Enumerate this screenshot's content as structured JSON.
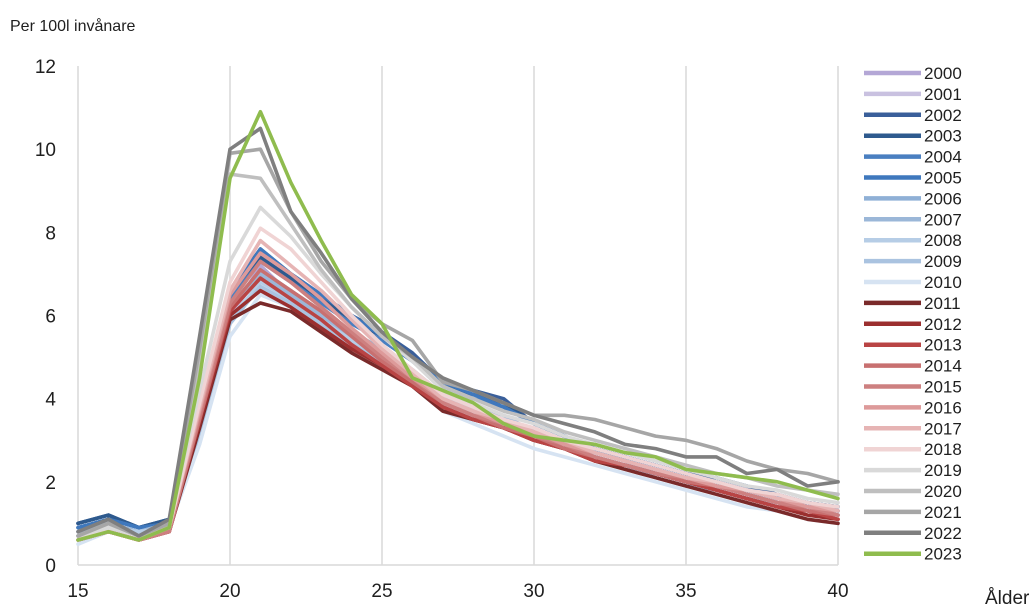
{
  "chart_data": {
    "type": "line",
    "title": "",
    "ylabel": "Per 100l invånare",
    "xlabel": "Ålder",
    "xlim": [
      15,
      40
    ],
    "ylim": [
      0,
      12
    ],
    "xticks": [
      15,
      20,
      25,
      30,
      35,
      40
    ],
    "yticks": [
      0,
      2,
      4,
      6,
      8,
      10,
      12
    ],
    "grid": "vertical",
    "legend": "right",
    "x": [
      15,
      16,
      17,
      18,
      19,
      20,
      21,
      22,
      23,
      24,
      25,
      26,
      27,
      28,
      29,
      30,
      31,
      32,
      33,
      34,
      35,
      36,
      37,
      38,
      39,
      40
    ],
    "series": [
      {
        "name": "2000",
        "color": "#b4a7d6",
        "values": [
          0.7,
          1.0,
          0.7,
          1.0,
          3.5,
          6.0,
          7.2,
          6.5,
          6.0,
          5.4,
          5.0,
          4.5,
          3.9,
          3.6,
          3.3,
          3.1,
          2.9,
          2.6,
          2.4,
          2.2,
          2.0,
          1.8,
          1.6,
          1.5,
          1.3,
          1.2
        ]
      },
      {
        "name": "2001",
        "color": "#c9c1e0",
        "values": [
          0.8,
          1.0,
          0.8,
          1.0,
          3.4,
          6.0,
          7.0,
          6.4,
          5.9,
          5.3,
          5.0,
          4.5,
          3.9,
          3.6,
          3.3,
          3.1,
          2.9,
          2.6,
          2.4,
          2.2,
          2.0,
          1.8,
          1.6,
          1.5,
          1.3,
          1.2
        ]
      },
      {
        "name": "2002",
        "color": "#3a5f9a",
        "values": [
          1.0,
          1.2,
          0.9,
          1.1,
          3.6,
          6.6,
          7.6,
          7.0,
          6.5,
          6.0,
          5.6,
          5.1,
          4.4,
          4.2,
          4.0,
          3.4,
          3.1,
          2.8,
          2.6,
          2.4,
          2.2,
          2.1,
          1.9,
          1.7,
          1.5,
          1.4
        ]
      },
      {
        "name": "2003",
        "color": "#2e5a8e",
        "values": [
          1.0,
          1.2,
          0.9,
          1.1,
          3.5,
          6.5,
          7.4,
          6.9,
          6.4,
          5.9,
          5.5,
          5.0,
          4.3,
          4.1,
          3.9,
          3.4,
          3.1,
          2.8,
          2.6,
          2.4,
          2.2,
          2.0,
          1.8,
          1.6,
          1.5,
          1.4
        ]
      },
      {
        "name": "2004",
        "color": "#4a7fc1",
        "values": [
          0.9,
          1.1,
          0.9,
          1.0,
          3.4,
          6.4,
          7.3,
          6.8,
          6.3,
          5.8,
          5.4,
          4.9,
          4.3,
          4.0,
          3.8,
          3.4,
          3.1,
          2.8,
          2.6,
          2.4,
          2.2,
          2.0,
          1.8,
          1.6,
          1.5,
          1.3
        ]
      },
      {
        "name": "2005",
        "color": "#3f78bd",
        "values": [
          0.9,
          1.1,
          0.9,
          1.0,
          3.4,
          6.5,
          7.6,
          7.0,
          6.5,
          6.0,
          5.5,
          5.0,
          4.4,
          4.1,
          3.8,
          3.4,
          3.1,
          2.8,
          2.6,
          2.4,
          2.2,
          2.0,
          1.8,
          1.6,
          1.5,
          1.3
        ]
      },
      {
        "name": "2006",
        "color": "#8fb0d6",
        "values": [
          0.8,
          1.0,
          0.8,
          1.0,
          3.3,
          6.2,
          7.1,
          6.6,
          6.1,
          5.6,
          5.2,
          4.7,
          4.1,
          3.8,
          3.6,
          3.2,
          3.0,
          2.7,
          2.5,
          2.3,
          2.1,
          1.9,
          1.7,
          1.5,
          1.4,
          1.3
        ]
      },
      {
        "name": "2007",
        "color": "#9bb7d8",
        "values": [
          0.8,
          1.0,
          0.8,
          1.0,
          3.2,
          6.1,
          7.0,
          6.5,
          6.0,
          5.5,
          5.1,
          4.6,
          4.0,
          3.7,
          3.5,
          3.2,
          2.9,
          2.7,
          2.5,
          2.2,
          2.0,
          1.9,
          1.7,
          1.5,
          1.4,
          1.2
        ]
      },
      {
        "name": "2008",
        "color": "#b6cde6",
        "values": [
          0.7,
          0.9,
          0.8,
          0.9,
          3.1,
          5.9,
          6.8,
          6.4,
          5.9,
          5.4,
          5.0,
          4.5,
          3.9,
          3.6,
          3.4,
          3.1,
          2.9,
          2.6,
          2.4,
          2.2,
          2.0,
          1.8,
          1.6,
          1.5,
          1.3,
          1.2
        ]
      },
      {
        "name": "2009",
        "color": "#aac3e0",
        "values": [
          0.7,
          0.9,
          0.7,
          0.9,
          3.0,
          5.8,
          6.7,
          6.3,
          5.8,
          5.3,
          4.9,
          4.4,
          3.8,
          3.5,
          3.3,
          3.0,
          2.8,
          2.6,
          2.4,
          2.1,
          1.9,
          1.8,
          1.6,
          1.4,
          1.3,
          1.2
        ]
      },
      {
        "name": "2010",
        "color": "#d6e3f2",
        "values": [
          0.5,
          0.8,
          0.7,
          0.9,
          2.9,
          5.5,
          6.5,
          6.2,
          5.7,
          5.2,
          4.8,
          4.3,
          3.7,
          3.4,
          3.1,
          2.8,
          2.6,
          2.4,
          2.2,
          2.0,
          1.8,
          1.6,
          1.4,
          1.3,
          1.1,
          1.0
        ]
      },
      {
        "name": "2011",
        "color": "#7a2a2a",
        "values": [
          0.6,
          0.8,
          0.6,
          0.8,
          3.3,
          5.9,
          6.3,
          6.1,
          5.6,
          5.1,
          4.7,
          4.3,
          3.7,
          3.5,
          3.3,
          3.0,
          2.8,
          2.5,
          2.3,
          2.1,
          1.9,
          1.7,
          1.5,
          1.3,
          1.1,
          1.0
        ]
      },
      {
        "name": "2012",
        "color": "#9b2f2f",
        "values": [
          0.6,
          0.8,
          0.6,
          0.8,
          3.4,
          6.0,
          6.6,
          6.2,
          5.7,
          5.2,
          4.8,
          4.3,
          3.8,
          3.5,
          3.3,
          3.0,
          2.8,
          2.5,
          2.4,
          2.2,
          2.0,
          1.8,
          1.6,
          1.4,
          1.2,
          1.1
        ]
      },
      {
        "name": "2013",
        "color": "#b94444",
        "values": [
          0.6,
          0.8,
          0.6,
          0.8,
          3.5,
          6.1,
          6.9,
          6.4,
          5.9,
          5.3,
          4.8,
          4.3,
          3.8,
          3.5,
          3.3,
          3.0,
          2.8,
          2.5,
          2.4,
          2.2,
          2.0,
          1.8,
          1.6,
          1.4,
          1.3,
          1.1
        ]
      },
      {
        "name": "2014",
        "color": "#c87070",
        "values": [
          0.6,
          0.8,
          0.6,
          0.8,
          3.5,
          6.2,
          7.1,
          6.6,
          6.1,
          5.5,
          4.9,
          4.4,
          3.9,
          3.6,
          3.3,
          3.1,
          2.8,
          2.6,
          2.4,
          2.2,
          2.0,
          1.9,
          1.7,
          1.5,
          1.3,
          1.2
        ]
      },
      {
        "name": "2015",
        "color": "#cd8080",
        "values": [
          0.6,
          0.8,
          0.6,
          0.8,
          3.6,
          6.3,
          7.3,
          6.8,
          6.2,
          5.6,
          5.0,
          4.5,
          3.9,
          3.6,
          3.4,
          3.1,
          2.9,
          2.6,
          2.4,
          2.2,
          2.1,
          1.9,
          1.7,
          1.5,
          1.4,
          1.2
        ]
      },
      {
        "name": "2016",
        "color": "#dd9a9a",
        "values": [
          0.6,
          0.8,
          0.6,
          0.9,
          3.7,
          6.5,
          7.5,
          7.0,
          6.4,
          5.7,
          5.1,
          4.5,
          4.0,
          3.7,
          3.4,
          3.2,
          2.9,
          2.7,
          2.5,
          2.3,
          2.1,
          1.9,
          1.8,
          1.6,
          1.4,
          1.3
        ]
      },
      {
        "name": "2017",
        "color": "#e6b4b4",
        "values": [
          0.6,
          0.8,
          0.6,
          0.9,
          3.8,
          6.6,
          7.8,
          7.2,
          6.6,
          5.9,
          5.2,
          4.6,
          4.0,
          3.7,
          3.5,
          3.2,
          3.0,
          2.7,
          2.5,
          2.3,
          2.1,
          2.0,
          1.8,
          1.6,
          1.5,
          1.3
        ]
      },
      {
        "name": "2018",
        "color": "#f0d4d4",
        "values": [
          0.6,
          0.9,
          0.7,
          0.9,
          3.9,
          6.8,
          8.1,
          7.6,
          6.8,
          6.0,
          5.3,
          4.7,
          4.1,
          3.8,
          3.5,
          3.3,
          3.0,
          2.8,
          2.6,
          2.4,
          2.2,
          2.0,
          1.8,
          1.7,
          1.5,
          1.4
        ]
      },
      {
        "name": "2019",
        "color": "#d9d9d9",
        "values": [
          0.7,
          0.9,
          0.7,
          1.0,
          4.2,
          7.3,
          8.6,
          7.9,
          7.0,
          6.2,
          5.5,
          4.9,
          4.2,
          3.9,
          3.6,
          3.4,
          3.1,
          2.9,
          2.7,
          2.5,
          2.3,
          2.1,
          1.9,
          1.8,
          1.6,
          1.5
        ]
      },
      {
        "name": "2020",
        "color": "#bfbfbf",
        "values": [
          0.7,
          1.0,
          0.7,
          1.0,
          4.8,
          9.4,
          9.3,
          8.2,
          7.1,
          6.2,
          5.5,
          5.0,
          4.3,
          4.0,
          3.7,
          3.5,
          3.2,
          3.0,
          2.8,
          2.6,
          2.4,
          2.2,
          2.1,
          1.9,
          1.8,
          1.7
        ]
      },
      {
        "name": "2021",
        "color": "#a6a6a6",
        "values": [
          0.7,
          1.0,
          0.7,
          1.0,
          5.2,
          9.9,
          10.0,
          8.5,
          7.3,
          6.4,
          5.8,
          5.4,
          4.4,
          4.2,
          3.9,
          3.6,
          3.6,
          3.5,
          3.3,
          3.1,
          3.0,
          2.8,
          2.5,
          2.3,
          2.2,
          2.0
        ]
      },
      {
        "name": "2022",
        "color": "#7f7f7f",
        "values": [
          0.8,
          1.1,
          0.7,
          1.1,
          5.5,
          10.0,
          10.5,
          8.5,
          7.5,
          6.4,
          5.6,
          5.0,
          4.5,
          4.2,
          3.9,
          3.6,
          3.4,
          3.2,
          2.9,
          2.8,
          2.6,
          2.6,
          2.2,
          2.3,
          1.9,
          2.0
        ]
      },
      {
        "name": "2023",
        "color": "#8fbc4e",
        "values": [
          0.6,
          0.8,
          0.6,
          0.9,
          4.5,
          9.3,
          10.9,
          9.2,
          7.8,
          6.5,
          5.8,
          4.5,
          4.2,
          3.9,
          3.4,
          3.1,
          3.0,
          2.9,
          2.7,
          2.6,
          2.3,
          2.2,
          2.1,
          2.0,
          1.8,
          1.6
        ]
      }
    ]
  }
}
